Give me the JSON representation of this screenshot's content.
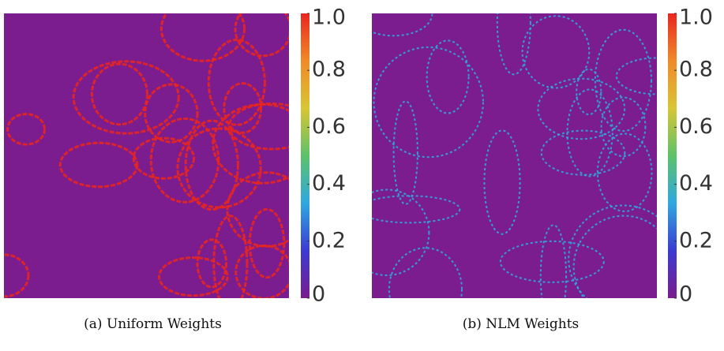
{
  "chart_data": [
    {
      "type": "image",
      "caption": "(a) Uniform Weights",
      "zlim": [
        0,
        1
      ],
      "colorbar_ticks": [
        {
          "value": 1,
          "label": "1.0"
        },
        0.8,
        0.6,
        0.4,
        0.2,
        0
      ],
      "colormap": [
        "#7b1d8e",
        "#3b3bd0",
        "#2fa8e0",
        "#5cc26a",
        "#d8c534",
        "#f08a28",
        "#e8261f"
      ]
    },
    {
      "type": "image",
      "caption": "(b) NLM Weights",
      "zlim": [
        0,
        1
      ],
      "colorbar_ticks": [
        {
          "value": 1,
          "label": "1.0"
        },
        0.8,
        0.6,
        0.4,
        0.2,
        0
      ],
      "colormap": [
        "#7b1d8e",
        "#3b3bd0",
        "#2fa8e0",
        "#5cc26a",
        "#d8c534",
        "#f08a28",
        "#e8261f"
      ]
    }
  ]
}
